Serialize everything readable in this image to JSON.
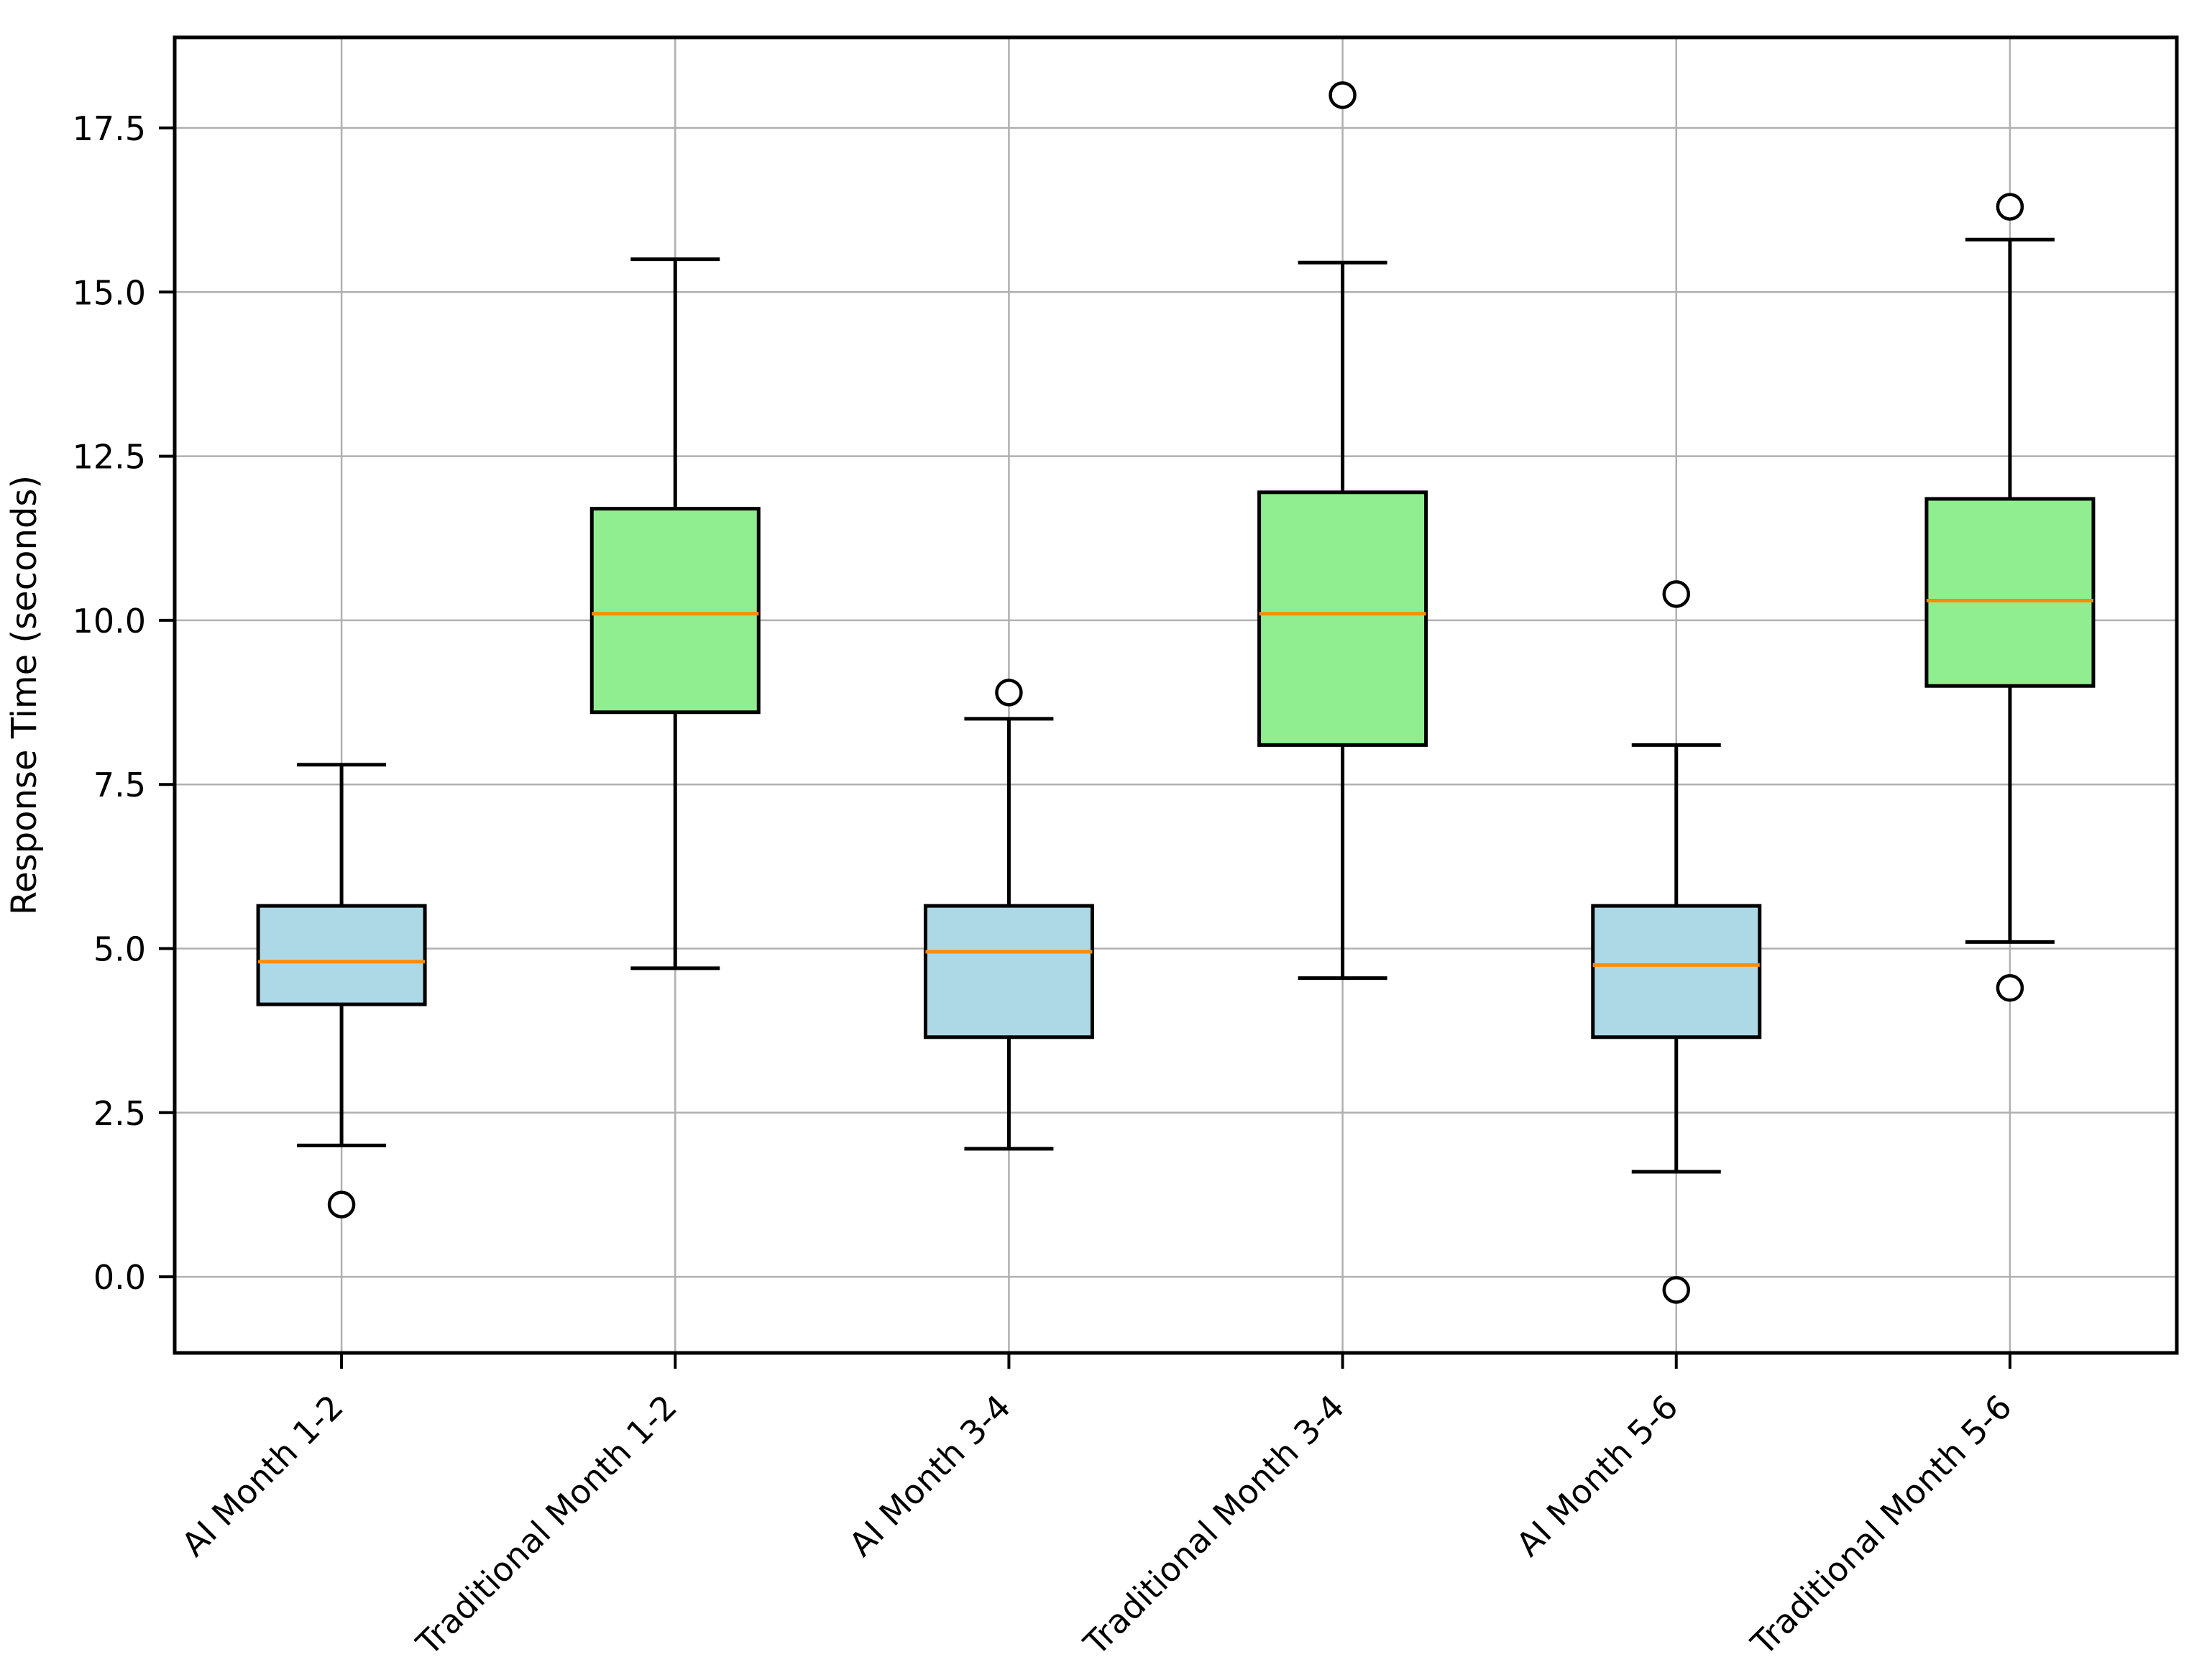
{
  "chart_data": {
    "type": "boxplot",
    "title": "",
    "xlabel": "",
    "ylabel": "Response Time (seconds)",
    "ylim": [
      -1.16,
      18.88
    ],
    "yticks": [
      0.0,
      2.5,
      5.0,
      7.5,
      10.0,
      12.5,
      15.0,
      17.5
    ],
    "grid": true,
    "legend": "none",
    "categories": [
      "AI Month 1-2",
      "Traditional Month 1-2",
      "AI Month 3-4",
      "Traditional Month 3-4",
      "AI Month 5-6",
      "Traditional Month 5-6"
    ],
    "series": [
      {
        "label": "AI Month 1-2",
        "fill": "#add8e6",
        "whislo": 2.0,
        "q1": 4.15,
        "med": 4.8,
        "q3": 5.65,
        "whishi": 7.8,
        "fliers": [
          1.1
        ]
      },
      {
        "label": "Traditional Month 1-2",
        "fill": "#90ee90",
        "whislo": 4.7,
        "q1": 8.6,
        "med": 10.1,
        "q3": 11.7,
        "whishi": 15.5,
        "fliers": []
      },
      {
        "label": "AI Month 3-4",
        "fill": "#add8e6",
        "whislo": 1.95,
        "q1": 3.65,
        "med": 4.95,
        "q3": 5.65,
        "whishi": 8.5,
        "fliers": [
          8.9
        ]
      },
      {
        "label": "Traditional Month 3-4",
        "fill": "#90ee90",
        "whislo": 4.55,
        "q1": 8.1,
        "med": 10.1,
        "q3": 11.95,
        "whishi": 15.45,
        "fliers": [
          18.0
        ]
      },
      {
        "label": "AI Month 5-6",
        "fill": "#add8e6",
        "whislo": 1.6,
        "q1": 3.65,
        "med": 4.75,
        "q3": 5.65,
        "whishi": 8.1,
        "fliers": [
          10.4,
          -0.2
        ]
      },
      {
        "label": "Traditional Month 5-6",
        "fill": "#90ee90",
        "whislo": 5.1,
        "q1": 9.0,
        "med": 10.3,
        "q3": 11.85,
        "whishi": 15.8,
        "fliers": [
          16.3,
          4.4
        ]
      }
    ],
    "colors": {
      "ai_box_fill": "#add8e6",
      "traditional_box_fill": "#90ee90",
      "median_line": "#ff8c00",
      "box_edge": "#000000",
      "whisker": "#000000",
      "outlier_edge": "#000000",
      "outlier_fill": "#ffffff",
      "grid_line": "#b0b0b0",
      "axis": "#000000",
      "background": "#ffffff"
    }
  }
}
